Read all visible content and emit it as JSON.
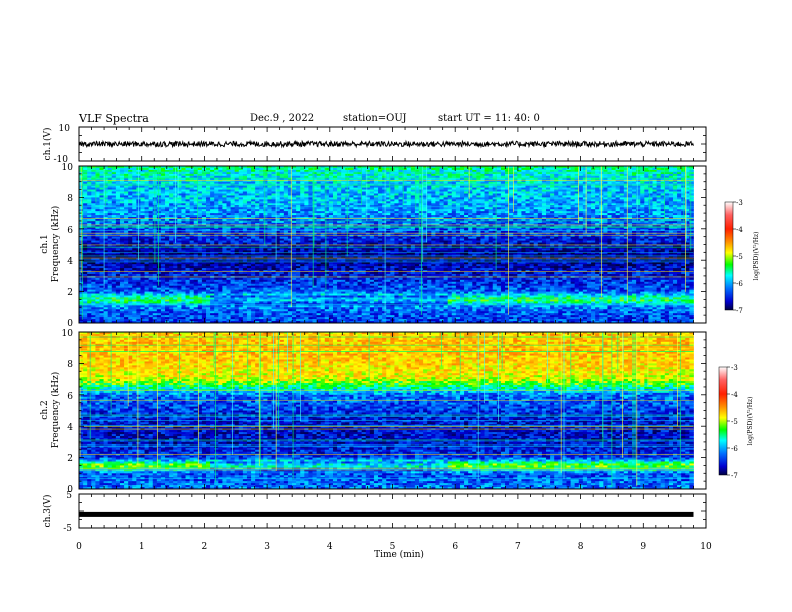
{
  "header": {
    "title": "VLF Spectra",
    "date": "Dec.9 , 2022",
    "station": "station=OUJ",
    "start": "start UT = 11: 40: 0"
  },
  "colors": {
    "colorbar": [
      "#ffffff",
      "#ff2020",
      "#ff8c00",
      "#ffff00",
      "#00ff00",
      "#00ffff",
      "#0070ff",
      "#0000ff",
      "#000050"
    ],
    "waveform": "#000000"
  },
  "chart_data": [
    {
      "type": "line",
      "panel": "ch1-waveform",
      "ylabel": "ch.1(V)",
      "ylim": [
        -10,
        10
      ],
      "yticks": [
        "10",
        "-10"
      ],
      "xlim": [
        0,
        10
      ],
      "series": [
        {
          "x": [
            0,
            9.8
          ],
          "values": [
            0,
            0
          ]
        }
      ]
    },
    {
      "type": "heatmap",
      "panel": "ch1-spectrogram",
      "ylabel_line1": "ch.1",
      "ylabel_line2": "Frequency (kHz)",
      "ylim": [
        0,
        10
      ],
      "yticks": [
        "0",
        "2",
        "4",
        "6",
        "8",
        "10"
      ],
      "xlim": [
        0,
        10
      ],
      "data_end": 9.8,
      "colorbar": {
        "label": "log(PSD)(V²/Hz)",
        "ticks": [
          "-3",
          "-4",
          "-5",
          "-6",
          "-7"
        ],
        "range": [
          -7,
          -3
        ]
      },
      "profile": [
        {
          "f": 10,
          "v": -5.6
        },
        {
          "f": 9,
          "v": -5.9
        },
        {
          "f": 8,
          "v": -6.0
        },
        {
          "f": 7,
          "v": -6.1
        },
        {
          "f": 6,
          "v": -6.3
        },
        {
          "f": 5,
          "v": -6.6
        },
        {
          "f": 4,
          "v": -6.8
        },
        {
          "f": 3,
          "v": -6.5
        },
        {
          "f": 2,
          "v": -6.3
        },
        {
          "f": 1.5,
          "v": -5.4
        },
        {
          "f": 1,
          "v": -6.2
        },
        {
          "f": 0,
          "v": -6.4
        }
      ]
    },
    {
      "type": "heatmap",
      "panel": "ch2-spectrogram",
      "ylabel_line1": "ch.2",
      "ylabel_line2": "Frequency (kHz)",
      "ylim": [
        0,
        10
      ],
      "yticks": [
        "0",
        "2",
        "4",
        "6",
        "8",
        "10"
      ],
      "xlim": [
        0,
        10
      ],
      "data_end": 9.8,
      "colorbar": {
        "label": "log(PSD)(V²/Hz)",
        "ticks": [
          "-3",
          "-4",
          "-5",
          "-6",
          "-7"
        ],
        "range": [
          -7,
          -3
        ]
      },
      "profile": [
        {
          "f": 10,
          "v": -4.8
        },
        {
          "f": 9,
          "v": -4.7
        },
        {
          "f": 8,
          "v": -4.8
        },
        {
          "f": 7,
          "v": -5.0
        },
        {
          "f": 6,
          "v": -6.2
        },
        {
          "f": 5,
          "v": -6.4
        },
        {
          "f": 4,
          "v": -6.6
        },
        {
          "f": 3,
          "v": -6.6
        },
        {
          "f": 2,
          "v": -6.4
        },
        {
          "f": 1.5,
          "v": -5.2
        },
        {
          "f": 1,
          "v": -6.3
        },
        {
          "f": 0,
          "v": -6.2
        }
      ]
    },
    {
      "type": "line",
      "panel": "ch3-waveform",
      "ylabel": "ch.3(V)",
      "ylim": [
        -5,
        5
      ],
      "yticks": [
        "5",
        "-5"
      ],
      "xlim": [
        0,
        10
      ],
      "xlabel": "Time (min)",
      "xticks": [
        "0",
        "1",
        "2",
        "3",
        "4",
        "5",
        "6",
        "7",
        "8",
        "9",
        "10"
      ],
      "series": [
        {
          "x": [
            0,
            9.8
          ],
          "values": [
            -1,
            -1
          ]
        }
      ]
    }
  ]
}
